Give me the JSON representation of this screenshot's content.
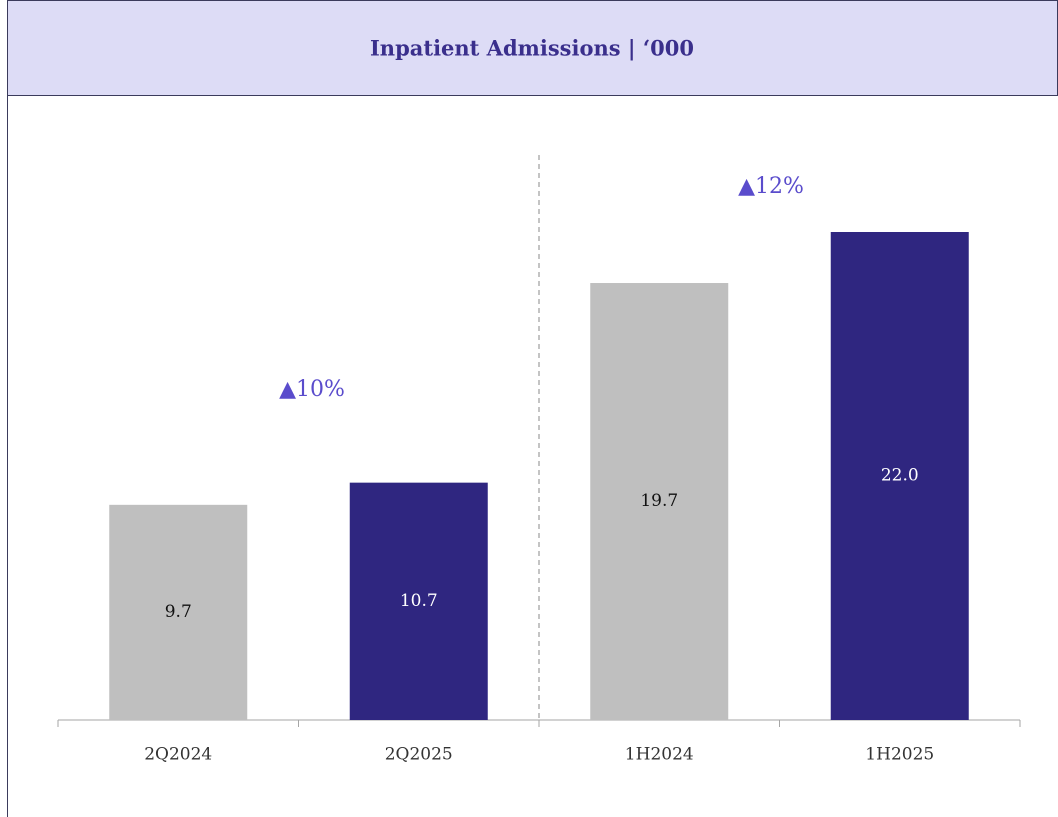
{
  "chart_data": {
    "type": "bar",
    "title": "Inpatient Admissions | ‘000",
    "categories": [
      "2Q2024",
      "2Q2025",
      "1H2024",
      "1H2025"
    ],
    "values": [
      9.7,
      10.7,
      19.7,
      22.0
    ],
    "value_labels": [
      "9.7",
      "10.7",
      "19.7",
      "22.0"
    ],
    "colors": [
      "#bfbfbf",
      "#2f2680",
      "#bfbfbf",
      "#2f2680"
    ],
    "annotations": [
      "▲10%",
      "▲12%"
    ]
  }
}
